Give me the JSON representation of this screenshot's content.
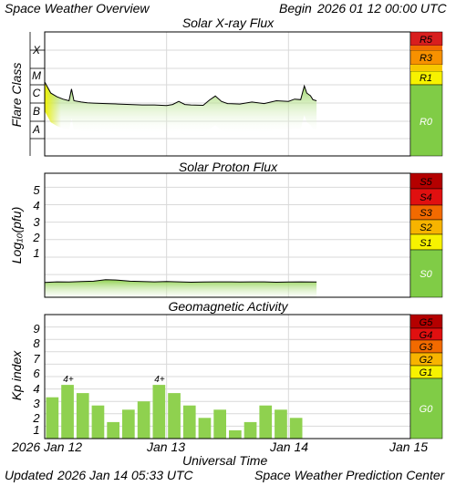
{
  "header": {
    "title": "Space Weather Overview",
    "begin_label": "Begin",
    "begin_value": "2026 01 12 00:00 UTC"
  },
  "footer": {
    "updated_label": "Updated",
    "updated_value": "2026 Jan 14 05:33 UTC",
    "credit": "Space Weather Prediction Center"
  },
  "x_axis": {
    "label": "Universal Time",
    "year": "2026",
    "ticks": [
      "Jan 12",
      "Jan 13",
      "Jan 14",
      "Jan 15"
    ]
  },
  "colors": {
    "line_fill": "#8fd14f",
    "bar": "#8fd14f",
    "scale_green": "#80cc46",
    "scale_yellow": "#f7f200",
    "scale_orange": "#f79100",
    "scale_orange_dark": "#f26a00",
    "scale_red": "#d81e1e",
    "scale_red_dark": "#b40000",
    "grid": "#d9d9d9"
  },
  "chart_data": [
    {
      "type": "area",
      "title": "Solar X-ray Flux",
      "ylabel": "Flare Class",
      "y_scale": "log",
      "y_ticks": [
        "A",
        "B",
        "C",
        "M",
        "X"
      ],
      "ylim": [
        1e-09,
        0.01
      ],
      "x_domain_days": [
        0,
        3
      ],
      "data_end_day": 2.23,
      "x": [
        0.0,
        0.05,
        0.1,
        0.15,
        0.2,
        0.22,
        0.24,
        0.3,
        0.35,
        0.4,
        0.5,
        0.6,
        0.7,
        0.8,
        0.9,
        1.0,
        1.05,
        1.1,
        1.15,
        1.2,
        1.3,
        1.35,
        1.4,
        1.45,
        1.5,
        1.6,
        1.7,
        1.8,
        1.9,
        2.0,
        2.05,
        2.1,
        2.13,
        2.15,
        2.18,
        2.2,
        2.23
      ],
      "values": [
        1.5e-05,
        3.5e-06,
        2.2e-06,
        1.6e-06,
        1.3e-06,
        6e-06,
        1.3e-06,
        1.1e-06,
        1e-06,
        9.5e-07,
        9e-07,
        8.5e-07,
        8e-07,
        7.5e-07,
        7.5e-07,
        7e-07,
        8e-07,
        1.2e-06,
        8e-07,
        7.5e-07,
        7.2e-07,
        1.4e-06,
        2.4e-06,
        1.2e-06,
        9e-07,
        8.5e-07,
        1.1e-06,
        9e-07,
        1.3e-06,
        1.2e-06,
        1.6e-06,
        1.5e-06,
        9e-06,
        3.5e-06,
        2.5e-06,
        1.5e-06,
        1.3e-06
      ],
      "scale_labels": [
        "R5",
        "R3",
        "R1",
        "R0"
      ]
    },
    {
      "type": "area",
      "title": "Solar Proton Flux",
      "ylabel": "Log₁₀(pfu)",
      "y_ticks": [
        "1",
        "2",
        "3",
        "4",
        "5"
      ],
      "ylim": [
        -1.3,
        5.8
      ],
      "x_domain_days": [
        0,
        3
      ],
      "x": [
        0.0,
        0.1,
        0.2,
        0.3,
        0.4,
        0.5,
        0.6,
        0.7,
        0.8,
        0.9,
        1.0,
        1.1,
        1.2,
        1.3,
        1.4,
        1.5,
        1.6,
        1.7,
        1.8,
        1.9,
        2.0,
        2.1,
        2.23
      ],
      "values": [
        -0.45,
        -0.42,
        -0.43,
        -0.4,
        -0.38,
        -0.3,
        -0.32,
        -0.38,
        -0.4,
        -0.42,
        -0.4,
        -0.42,
        -0.44,
        -0.43,
        -0.42,
        -0.42,
        -0.43,
        -0.42,
        -0.42,
        -0.44,
        -0.43,
        -0.42,
        -0.43
      ],
      "scale_labels": [
        "S5",
        "S4",
        "S3",
        "S2",
        "S1",
        "S0"
      ]
    },
    {
      "type": "bar",
      "title": "Geomagnetic Activity",
      "ylabel": "Kp index",
      "y_ticks": [
        "1",
        "2",
        "3",
        "4",
        "5",
        "6",
        "7",
        "8",
        "9"
      ],
      "ylim": [
        0,
        10
      ],
      "x_domain_days": [
        0,
        3
      ],
      "bin_hours": 3,
      "values": [
        3.33,
        4.33,
        3.67,
        2.67,
        1.33,
        2.33,
        3.0,
        4.33,
        3.67,
        2.67,
        1.67,
        2.33,
        0.67,
        1.33,
        2.67,
        2.33,
        1.67
      ],
      "annotations": [
        {
          "index": 1,
          "text": "4+"
        },
        {
          "index": 7,
          "text": "4+"
        }
      ],
      "scale_labels": [
        "G5",
        "G4",
        "G3",
        "G2",
        "G1",
        "G0"
      ]
    }
  ]
}
